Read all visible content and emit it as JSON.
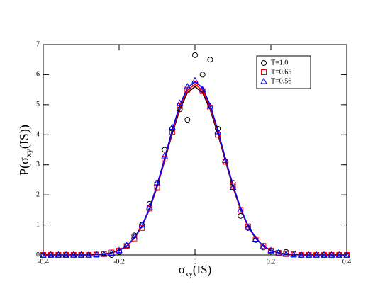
{
  "chart_data": {
    "type": "scatter",
    "xlabel": {
      "main": "σ",
      "sub": "xy",
      "tail": "(IS)"
    },
    "ylabel": {
      "main": "P(σ",
      "sub": "xy",
      "tail": "(IS))"
    },
    "x": [
      -0.4,
      -0.38,
      -0.36,
      -0.34,
      -0.32,
      -0.3,
      -0.28,
      -0.26,
      -0.24,
      -0.22,
      -0.2,
      -0.18,
      -0.16,
      -0.14,
      -0.12,
      -0.1,
      -0.08,
      -0.06,
      -0.04,
      -0.02,
      0,
      0.02,
      0.04,
      0.06,
      0.08,
      0.1,
      0.12,
      0.14,
      0.16,
      0.18,
      0.2,
      0.22,
      0.24,
      0.26,
      0.28,
      0.3,
      0.32,
      0.34,
      0.36,
      0.38,
      0.4
    ],
    "series": [
      {
        "name": "T=1.0",
        "color": "#000000",
        "marker": "circle",
        "values": [
          0,
          0,
          0,
          0,
          0,
          0,
          0,
          0.02,
          0.05,
          0,
          0.1,
          0.3,
          0.65,
          1.0,
          1.7,
          2.4,
          3.5,
          4.2,
          4.85,
          4.5,
          6.65,
          6.0,
          6.5,
          4.2,
          3.1,
          2.4,
          1.3,
          0.9,
          0.5,
          0.25,
          0.15,
          0.05,
          0.1,
          0.05,
          0,
          0,
          0,
          0,
          0,
          0,
          0
        ]
      },
      {
        "name": "T=0.65",
        "color": "#ff0000",
        "marker": "square",
        "values": [
          0,
          0,
          0,
          0,
          0,
          0,
          0,
          0.01,
          0.03,
          0.08,
          0.14,
          0.3,
          0.55,
          0.9,
          1.55,
          2.25,
          3.2,
          4.1,
          4.95,
          5.5,
          5.7,
          5.45,
          4.9,
          4.0,
          3.1,
          2.3,
          1.5,
          0.95,
          0.52,
          0.3,
          0.14,
          0.07,
          0.03,
          0.01,
          0,
          0,
          0,
          0,
          0,
          0,
          0
        ]
      },
      {
        "name": "T=0.56",
        "color": "#0000ff",
        "marker": "triangle",
        "values": [
          0,
          0,
          0,
          0,
          0,
          0,
          0,
          0.01,
          0.03,
          0.06,
          0.15,
          0.32,
          0.6,
          1.0,
          1.6,
          2.4,
          3.3,
          4.25,
          5.05,
          5.6,
          5.8,
          5.5,
          4.95,
          4.1,
          3.15,
          2.25,
          1.5,
          0.92,
          0.53,
          0.28,
          0.15,
          0.07,
          0.03,
          0.01,
          0,
          0,
          0,
          0,
          0,
          0,
          0
        ]
      }
    ],
    "fits": [
      {
        "color": "#000000",
        "values": [
          0,
          0,
          0,
          0,
          0,
          0,
          0,
          0.01,
          0.03,
          0.07,
          0.15,
          0.29,
          0.55,
          0.94,
          1.51,
          2.26,
          3.13,
          4.04,
          4.84,
          5.4,
          5.6,
          5.4,
          4.84,
          4.04,
          3.13,
          2.26,
          1.51,
          0.94,
          0.55,
          0.29,
          0.15,
          0.07,
          0.03,
          0.01,
          0,
          0,
          0,
          0,
          0,
          0,
          0
        ]
      },
      {
        "color": "#ff0000",
        "values": [
          0,
          0,
          0,
          0,
          0,
          0,
          0,
          0.01,
          0.03,
          0.07,
          0.15,
          0.29,
          0.56,
          0.95,
          1.53,
          2.29,
          3.17,
          4.09,
          4.91,
          5.48,
          5.68,
          5.48,
          4.91,
          4.09,
          3.17,
          2.29,
          1.53,
          0.95,
          0.56,
          0.29,
          0.15,
          0.07,
          0.03,
          0.01,
          0,
          0,
          0,
          0,
          0,
          0,
          0
        ]
      },
      {
        "color": "#0000ff",
        "values": [
          0,
          0,
          0,
          0,
          0,
          0,
          0,
          0.01,
          0.03,
          0.07,
          0.15,
          0.3,
          0.57,
          0.97,
          1.56,
          2.33,
          3.22,
          4.16,
          4.99,
          5.56,
          5.77,
          5.56,
          4.99,
          4.16,
          3.22,
          2.33,
          1.56,
          0.97,
          0.57,
          0.3,
          0.15,
          0.07,
          0.03,
          0.01,
          0,
          0,
          0,
          0,
          0,
          0,
          0
        ]
      }
    ],
    "xlim": [
      -0.4,
      0.4
    ],
    "xticks": [
      -0.4,
      -0.2,
      0,
      0.2,
      0.4
    ],
    "ylim": [
      0,
      7
    ],
    "yticks": [
      0,
      1,
      2,
      3,
      4,
      5,
      6,
      7
    ],
    "legend": "upper right"
  }
}
